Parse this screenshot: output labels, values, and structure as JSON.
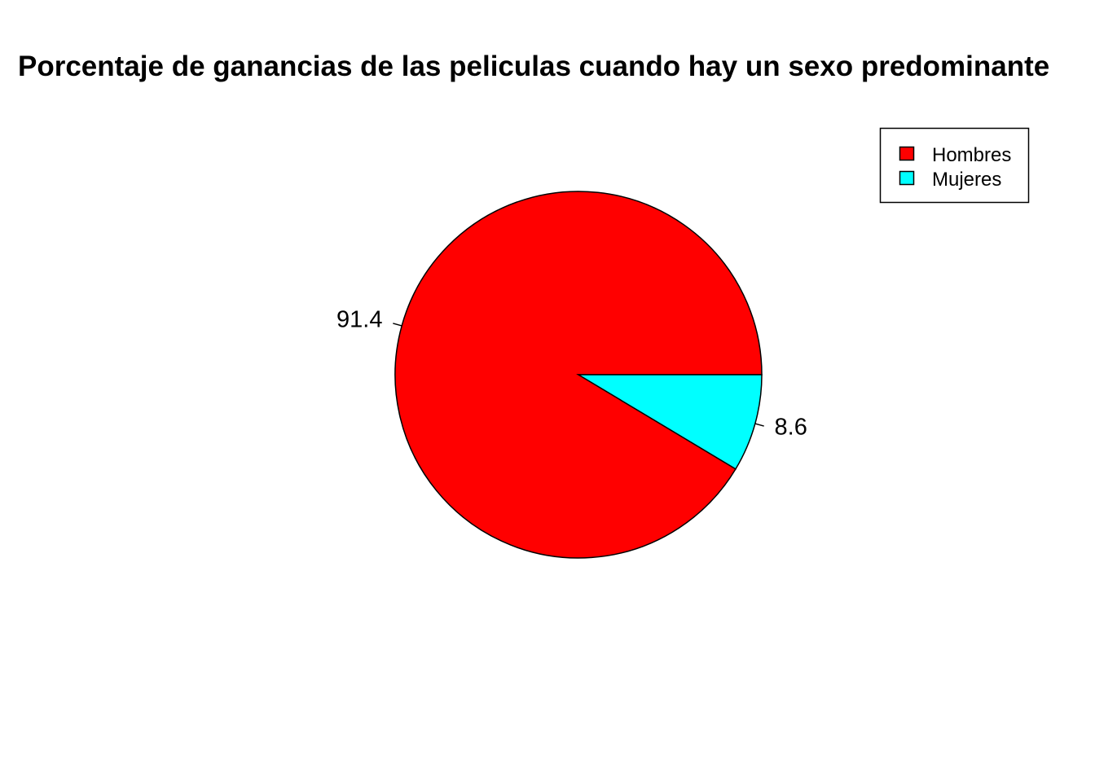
{
  "chart_data": {
    "type": "pie",
    "title": "Porcentaje de ganancias de las peliculas cuando hay un sexo predominante",
    "categories": [
      "Hombres",
      "Mujeres"
    ],
    "values": [
      91.4,
      8.6
    ],
    "labels": [
      "91.4",
      "8.6"
    ],
    "colors": [
      "#FF0000",
      "#00FFFF"
    ],
    "legend": {
      "position": "top-right",
      "entries": [
        "Hombres",
        "Mujeres"
      ]
    }
  }
}
